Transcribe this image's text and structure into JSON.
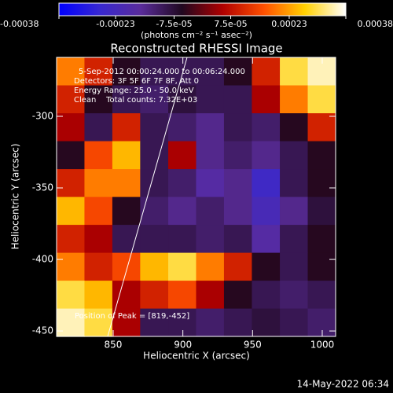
{
  "chart_data": {
    "type": "heatmap",
    "title": "Reconstructed RHESSI Image",
    "x_label": "Heliocentric X (arcsec)",
    "y_label": "Heliocentric Y (arcsec)",
    "colorbar_label": "(photons cm⁻² s⁻¹ asec⁻²)",
    "colorbar_lim": [
      -0.00038,
      0.00038
    ],
    "colorbar_ticks": [
      -0.00038,
      -0.00023,
      {
        "value": -7.5e-05,
        "label": "-7.5e-05"
      },
      {
        "value": 7.5e-05,
        "label": "7.5e-05"
      },
      0.00023,
      0.00038
    ],
    "colorscale": [
      "#0000ff",
      "#3828d0",
      "#5a2c9a",
      "#200820",
      "#b00000",
      "#ff5000",
      "#ffd000",
      "#ffffff"
    ],
    "annotations": [
      "5-Sep-2012 00:00:24.000 to 00:06:24.000",
      "Detectors: 3F 5F 6F 7F 8F, Att 0",
      "Energy Range: 25.0 - 50.0 keV",
      "Clean    Total counts: 7.32E+03"
    ],
    "peak_label": "Position of Peak = [819,-452]",
    "timestamp": "14-May-2022 06:34",
    "xlim": [
      809.4,
      1009.6
    ],
    "xticks": [
      850,
      900,
      950,
      1000
    ],
    "ylim": [
      -453.8,
      -258.8
    ],
    "yticks": [
      -450,
      -400,
      -350,
      -300
    ],
    "x": [
      819.4,
      839.4,
      859.4,
      879.4,
      899.5,
      919.5,
      939.5,
      959.5,
      979.6,
      999.6
    ],
    "y": [
      -268.6,
      -288.1,
      -307.6,
      -327.1,
      -346.6,
      -366.1,
      -385.6,
      -405.1,
      -424.6,
      -444.1
    ],
    "z": [
      [
        0.0002,
        0.0001,
        -5e-05,
        -0.0001,
        -0.0001,
        -0.0001,
        -5e-05,
        0.0001,
        0.0003,
        0.00035
      ],
      [
        0.0001,
        -5e-05,
        -0.0001,
        -0.00012,
        -8e-05,
        -0.0001,
        -0.0001,
        5e-05,
        0.0002,
        0.0003
      ],
      [
        5e-05,
        -0.0001,
        0.0001,
        -0.0001,
        -0.00012,
        -0.00015,
        -0.0001,
        -0.00012,
        -5e-05,
        0.0001
      ],
      [
        -5e-05,
        0.00015,
        0.00025,
        -0.0001,
        5e-05,
        -0.00015,
        -0.00012,
        -0.00015,
        -0.0001,
        -5e-05
      ],
      [
        0.0001,
        0.0002,
        0.0002,
        -0.0001,
        -0.00012,
        -0.00018,
        -0.00015,
        -0.00025,
        -0.0001,
        -5e-05
      ],
      [
        0.00025,
        0.00015,
        -5e-05,
        -0.00012,
        -0.00015,
        -0.00012,
        -0.00015,
        -0.00022,
        -0.00015,
        -8e-05
      ],
      [
        0.0001,
        5e-05,
        -0.0001,
        -0.0001,
        -0.0001,
        -0.00012,
        -0.0001,
        -0.00018,
        -0.0001,
        -5e-05
      ],
      [
        0.0002,
        0.0001,
        0.00015,
        0.00025,
        0.0003,
        0.0002,
        0.0001,
        -5e-05,
        -0.0001,
        -5e-05
      ],
      [
        0.0003,
        0.00025,
        5e-05,
        0.0001,
        0.00015,
        5e-05,
        -5e-05,
        -0.0001,
        -0.00012,
        -0.0001
      ],
      [
        0.00035,
        0.0003,
        5e-05,
        -0.0001,
        -0.0001,
        -0.00012,
        -0.0001,
        -8e-05,
        -0.0001,
        -0.00012
      ]
    ]
  }
}
